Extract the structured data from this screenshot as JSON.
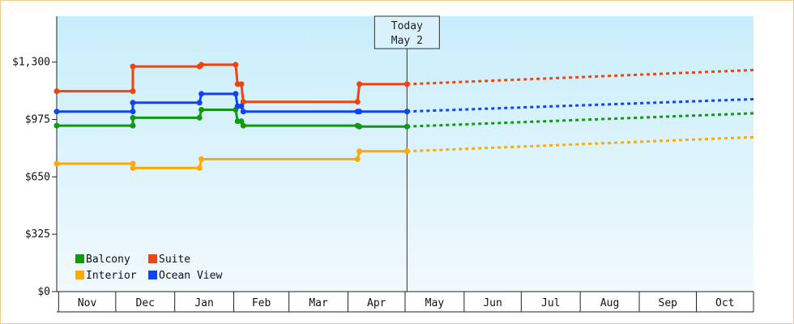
{
  "chart_data": {
    "type": "line",
    "title": "",
    "xlabel": "",
    "ylabel": "",
    "ylim": [
      0,
      1560
    ],
    "y_ticks": [
      {
        "value": 0,
        "label": "$0"
      },
      {
        "value": 325,
        "label": "$325"
      },
      {
        "value": 650,
        "label": "$650"
      },
      {
        "value": 975,
        "label": "$975"
      },
      {
        "value": 1300,
        "label": "$1,300"
      }
    ],
    "x_domain": [
      "2023-10-31",
      "2024-10-31"
    ],
    "months": [
      {
        "label": "Nov",
        "start": "2023-11-01"
      },
      {
        "label": "Dec",
        "start": "2023-12-01"
      },
      {
        "label": "Jan",
        "start": "2024-01-01"
      },
      {
        "label": "Feb",
        "start": "2024-02-01"
      },
      {
        "label": "Mar",
        "start": "2024-03-01"
      },
      {
        "label": "Apr",
        "start": "2024-04-01"
      },
      {
        "label": "May",
        "start": "2024-05-01"
      },
      {
        "label": "Jun",
        "start": "2024-06-01"
      },
      {
        "label": "Jul",
        "start": "2024-07-01"
      },
      {
        "label": "Aug",
        "start": "2024-08-01"
      },
      {
        "label": "Sep",
        "start": "2024-09-01"
      },
      {
        "label": "Oct",
        "start": "2024-10-01"
      }
    ],
    "month_end": "2024-10-31",
    "today": {
      "date": "2024-05-02",
      "line1": "Today",
      "line2": "May 2"
    },
    "grid": false,
    "legend_position": "bottom-left",
    "series": [
      {
        "name": "Balcony",
        "color": "#119911",
        "points": [
          [
            "2023-10-31",
            940
          ],
          [
            "2023-12-10",
            940
          ],
          [
            "2023-12-10",
            985
          ],
          [
            "2024-01-14",
            985
          ],
          [
            "2024-01-15",
            1030
          ],
          [
            "2024-02-02",
            1030
          ],
          [
            "2024-02-03",
            965
          ],
          [
            "2024-02-05",
            965
          ],
          [
            "2024-02-06",
            940
          ],
          [
            "2024-04-06",
            940
          ],
          [
            "2024-04-07",
            935
          ],
          [
            "2024-05-02",
            935
          ]
        ],
        "forecast": [
          [
            "2024-05-02",
            935
          ],
          [
            "2024-10-31",
            1010
          ]
        ]
      },
      {
        "name": "Suite",
        "color": "#ee4411",
        "points": [
          [
            "2023-10-31",
            1135
          ],
          [
            "2023-12-10",
            1135
          ],
          [
            "2023-12-10",
            1275
          ],
          [
            "2024-01-14",
            1275
          ],
          [
            "2024-01-15",
            1285
          ],
          [
            "2024-02-02",
            1285
          ],
          [
            "2024-02-03",
            1175
          ],
          [
            "2024-02-05",
            1175
          ],
          [
            "2024-02-06",
            1075
          ],
          [
            "2024-04-06",
            1075
          ],
          [
            "2024-04-07",
            1175
          ],
          [
            "2024-05-02",
            1175
          ]
        ],
        "forecast": [
          [
            "2024-05-02",
            1175
          ],
          [
            "2024-10-31",
            1255
          ]
        ]
      },
      {
        "name": "Interior",
        "color": "#ffaa00",
        "points": [
          [
            "2023-10-31",
            725
          ],
          [
            "2023-12-10",
            725
          ],
          [
            "2023-12-10",
            700
          ],
          [
            "2024-01-14",
            700
          ],
          [
            "2024-01-15",
            750
          ],
          [
            "2024-04-06",
            750
          ],
          [
            "2024-04-07",
            795
          ],
          [
            "2024-05-02",
            795
          ]
        ],
        "forecast": [
          [
            "2024-05-02",
            795
          ],
          [
            "2024-10-31",
            875
          ]
        ]
      },
      {
        "name": "Ocean View",
        "color": "#1144ee",
        "points": [
          [
            "2023-10-31",
            1020
          ],
          [
            "2023-12-10",
            1020
          ],
          [
            "2023-12-10",
            1070
          ],
          [
            "2024-01-14",
            1070
          ],
          [
            "2024-01-15",
            1120
          ],
          [
            "2024-02-02",
            1120
          ],
          [
            "2024-02-03",
            1050
          ],
          [
            "2024-02-05",
            1050
          ],
          [
            "2024-02-06",
            1020
          ],
          [
            "2024-04-06",
            1020
          ],
          [
            "2024-04-07",
            1020
          ],
          [
            "2024-05-02",
            1020
          ]
        ],
        "forecast": [
          [
            "2024-05-02",
            1020
          ],
          [
            "2024-10-31",
            1090
          ]
        ]
      }
    ]
  }
}
